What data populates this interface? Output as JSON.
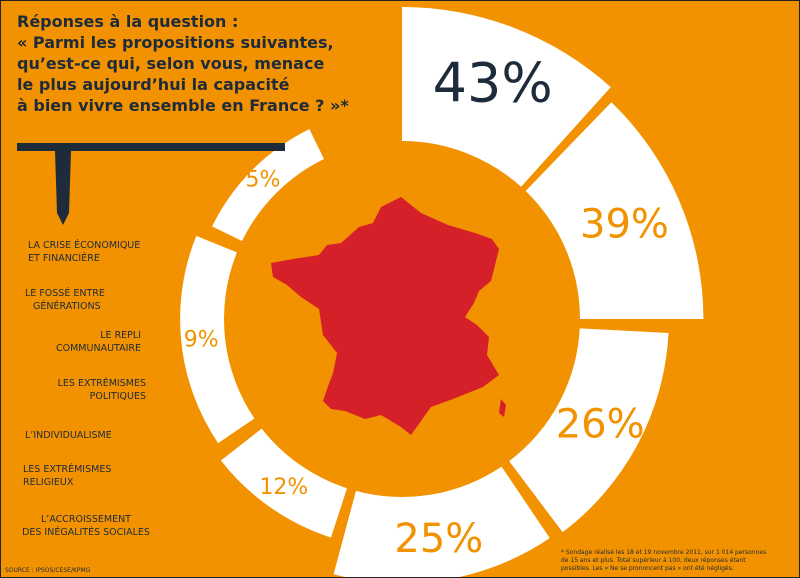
{
  "question": {
    "lines": [
      "Réponses à la question :",
      "« Parmi les propositions suivantes,",
      "qu’est-ce qui, selon vous, menace",
      "le plus aujourd’hui la capacité",
      "à bien vivre ensemble en France ? »*"
    ]
  },
  "colors": {
    "background": "#f39200",
    "segment": "#ffffff",
    "map": "#d5202a",
    "text_dark": "#1d2b3a",
    "label_on_white": "#f39200"
  },
  "chart_data": {
    "type": "pie",
    "variant": "radial-segments",
    "categories": [
      [
        "LA CRISE ÉCONOMIQUE",
        "ET FINANCIÈRE"
      ],
      [
        "LE FOSSÉ ENTRE",
        "GÉNÉRATIONS"
      ],
      [
        "LE REPLI",
        "COMMUNAUTAIRE"
      ],
      [
        "LES EXTRÉMISMES",
        "POLITIQUES"
      ],
      [
        "L’INDIVIDUALISME"
      ],
      [
        "LES EXTRÉMISMES",
        "RELIGIEUX"
      ],
      [
        "L’ACCROISSEMENT",
        "DES INÉGALITÉS SOCIALES"
      ]
    ],
    "values": [
      43,
      39,
      26,
      25,
      12,
      9,
      5
    ],
    "value_labels": [
      "43%",
      "39%",
      "26%",
      "25%",
      "12%",
      "9%",
      "5%"
    ],
    "unit": "%"
  },
  "footer": {
    "source": "SOURCE : IPSOS/CESE/KPMG",
    "footnote": [
      "* Sondage réalisé les 18 et 19 novembre 2011, sur 1 014 personnes",
      "de 15 ans et plus. Total supérieur à 100, deux réponses étant",
      "possibles. Les « Ne se prononcent pas » ont été négligés."
    ]
  }
}
